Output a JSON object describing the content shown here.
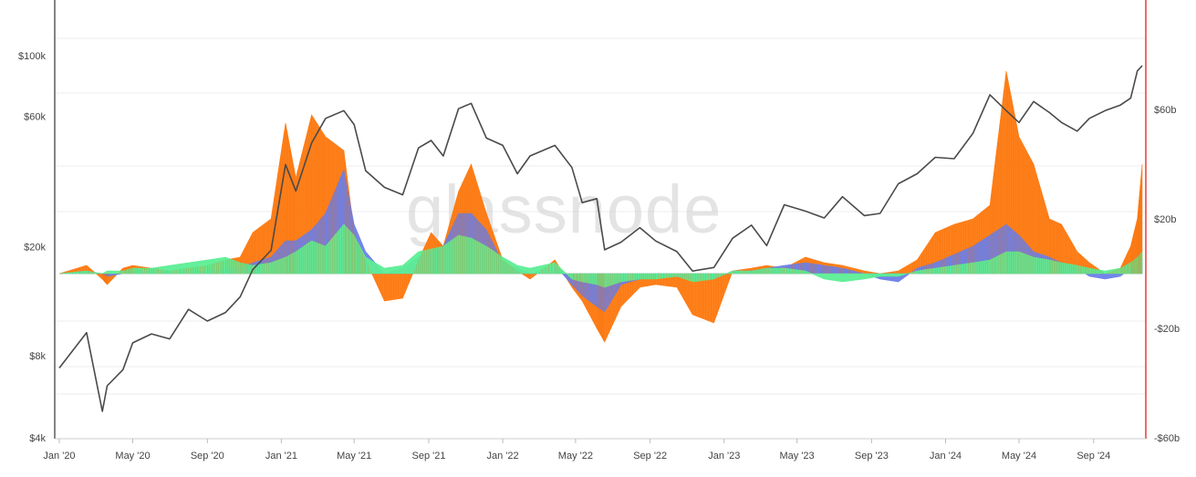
{
  "watermark": "glassnode",
  "colors": {
    "price_line": "#4a4a4a",
    "band_orange": "#ff7a10",
    "band_blue": "#6b7ee8",
    "band_green": "#5cee95",
    "right_axis": "#e8474a",
    "left_axis": "#333333",
    "grid": "#ececec"
  },
  "chart_data": {
    "type": "area",
    "title": "",
    "x_tick_labels": [
      "Jan '20",
      "May '20",
      "Sep '20",
      "Jan '21",
      "May '21",
      "Sep '21",
      "Jan '22",
      "May '22",
      "Sep '22",
      "Jan '23",
      "May '23",
      "Sep '23",
      "Jan '24",
      "May '24",
      "Sep '24"
    ],
    "left_axis": {
      "scale": "log",
      "range": [
        4000,
        160000
      ],
      "tick_labels": [
        "$4k",
        "$8k",
        "$20k",
        "$60k",
        "$100k"
      ],
      "tick_values": [
        4000,
        8000,
        20000,
        60000,
        100000
      ]
    },
    "right_axis": {
      "range": [
        -60,
        100
      ],
      "unit": "b",
      "tick_labels": [
        "-$60b",
        "-$20b",
        "$20b",
        "$60b"
      ],
      "tick_values": [
        -60,
        -20,
        20,
        60
      ]
    },
    "x": [
      "2020-01-01",
      "2020-02-15",
      "2020-03-12",
      "2020-03-20",
      "2020-04-15",
      "2020-05-01",
      "2020-06-01",
      "2020-07-01",
      "2020-08-01",
      "2020-09-01",
      "2020-10-01",
      "2020-10-25",
      "2020-11-15",
      "2020-12-15",
      "2021-01-08",
      "2021-01-25",
      "2021-02-20",
      "2021-03-15",
      "2021-04-14",
      "2021-05-01",
      "2021-05-20",
      "2021-06-20",
      "2021-07-20",
      "2021-08-15",
      "2021-09-05",
      "2021-09-25",
      "2021-10-20",
      "2021-11-10",
      "2021-12-05",
      "2022-01-01",
      "2022-01-25",
      "2022-02-15",
      "2022-03-28",
      "2022-04-25",
      "2022-05-12",
      "2022-06-05",
      "2022-06-18",
      "2022-07-15",
      "2022-08-15",
      "2022-09-10",
      "2022-10-15",
      "2022-11-10",
      "2022-12-15",
      "2023-01-15",
      "2023-02-15",
      "2023-03-12",
      "2023-04-10",
      "2023-05-15",
      "2023-06-15",
      "2023-07-15",
      "2023-08-20",
      "2023-09-15",
      "2023-10-15",
      "2023-11-15",
      "2023-12-15",
      "2024-01-15",
      "2024-02-15",
      "2024-03-14",
      "2024-04-10",
      "2024-05-01",
      "2024-05-25",
      "2024-06-20",
      "2024-07-10",
      "2024-08-05",
      "2024-08-25",
      "2024-09-20",
      "2024-10-15",
      "2024-11-01",
      "2024-11-12",
      "2024-11-20"
    ],
    "series": [
      {
        "role": "price",
        "axis": "left",
        "color_key": "price_line",
        "values": [
          7200,
          9700,
          5000,
          6200,
          7100,
          8900,
          9600,
          9200,
          11800,
          10700,
          11500,
          13100,
          16500,
          19400,
          40000,
          32000,
          48000,
          59000,
          63000,
          56000,
          38000,
          33000,
          31000,
          46000,
          49000,
          43000,
          64000,
          67000,
          50000,
          47000,
          37000,
          43000,
          47000,
          39000,
          29000,
          30000,
          19500,
          20800,
          23500,
          21000,
          19200,
          16300,
          16800,
          21500,
          24000,
          20200,
          28500,
          27000,
          25500,
          30500,
          26000,
          26500,
          34000,
          37000,
          42500,
          42000,
          52000,
          72000,
          63000,
          57000,
          68000,
          62000,
          57000,
          53000,
          59000,
          63000,
          66000,
          70000,
          88000,
          92000
        ]
      },
      {
        "role": "flow_orange",
        "axis": "right",
        "color_key": "band_orange",
        "values": [
          0,
          3,
          -2,
          -4,
          2,
          3,
          2,
          1,
          2,
          3,
          5,
          6,
          15,
          20,
          55,
          35,
          58,
          50,
          45,
          15,
          5,
          -10,
          -9,
          5,
          15,
          10,
          30,
          40,
          22,
          5,
          1,
          -2,
          5,
          -5,
          -10,
          -20,
          -25,
          -12,
          -5,
          -4,
          -5,
          -15,
          -18,
          1,
          2,
          3,
          2,
          6,
          4,
          3,
          1,
          0,
          1,
          5,
          15,
          18,
          20,
          25,
          74,
          50,
          40,
          20,
          18,
          8,
          4,
          0,
          2,
          10,
          20,
          40
        ]
      },
      {
        "role": "flow_blue",
        "axis": "right",
        "color_key": "band_blue",
        "values": [
          0,
          1,
          0,
          -1,
          0,
          1,
          1,
          1,
          1,
          1,
          2,
          2,
          4,
          6,
          12,
          12,
          16,
          22,
          38,
          18,
          8,
          0,
          2,
          6,
          8,
          10,
          22,
          22,
          16,
          4,
          2,
          0,
          3,
          -4,
          -8,
          -12,
          -14,
          -4,
          -2,
          -1,
          -1,
          -2,
          -2,
          1,
          1,
          2,
          3,
          4,
          3,
          2,
          0,
          -2,
          -3,
          2,
          4,
          7,
          10,
          14,
          18,
          14,
          8,
          6,
          4,
          2,
          -1,
          -2,
          -1,
          2,
          2,
          5
        ]
      },
      {
        "role": "flow_green",
        "axis": "right",
        "color_key": "band_green",
        "values": [
          0,
          1,
          0,
          1,
          1,
          2,
          2,
          3,
          4,
          5,
          6,
          4,
          3,
          4,
          6,
          8,
          12,
          10,
          18,
          14,
          6,
          2,
          3,
          8,
          9,
          10,
          14,
          13,
          10,
          6,
          3,
          2,
          4,
          -2,
          -3,
          -4,
          -5,
          -3,
          -2,
          -2,
          -1,
          -3,
          -2,
          1,
          1,
          2,
          2,
          1,
          -2,
          -3,
          -2,
          -1,
          -1,
          1,
          2,
          3,
          4,
          5,
          8,
          8,
          6,
          5,
          4,
          3,
          2,
          1,
          2,
          4,
          6,
          8
        ]
      }
    ]
  }
}
